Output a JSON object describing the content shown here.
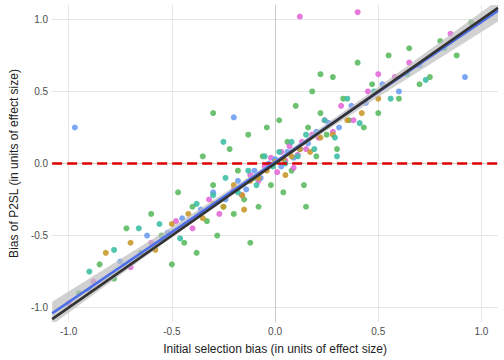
{
  "chart_data": {
    "type": "scatter",
    "x_label": "Initial selection bias (in units of effect size)",
    "y_label": "Bias of P2SL (in units of effect size)",
    "xlim": [
      -1.08,
      1.08
    ],
    "ylim": [
      -1.1,
      1.1
    ],
    "xticks": [
      {
        "value": -1,
        "label": "-1.0"
      },
      -0.5,
      {
        "value": 0,
        "label": "0.0"
      },
      0.5,
      {
        "value": 1,
        "label": "1.0"
      }
    ],
    "yticks": [
      {
        "value": -1,
        "label": "-1.0"
      },
      -0.5,
      {
        "value": 0,
        "label": "0.0"
      },
      0.5,
      {
        "value": 1,
        "label": "1.0"
      }
    ],
    "grid": true,
    "series": [
      {
        "type": "scatter",
        "color": "#5DBB63",
        "x": [
          -0.95,
          -0.85,
          -0.78,
          -0.72,
          -0.65,
          -0.6,
          -0.55,
          -0.5,
          -0.47,
          -0.44,
          -0.4,
          -0.38,
          -0.35,
          -0.33,
          -0.3,
          -0.28,
          -0.25,
          -0.22,
          -0.2,
          -0.18,
          -0.15,
          -0.13,
          -0.1,
          -0.08,
          -0.06,
          -0.04,
          -0.02,
          0,
          0.02,
          0.04,
          0.06,
          0.08,
          0.1,
          0.12,
          0.14,
          0.16,
          0.18,
          0.2,
          0.22,
          0.25,
          0.28,
          0.3,
          0.33,
          0.36,
          0.4,
          0.43,
          0.47,
          0.5,
          0.55,
          0.6,
          0.65,
          0.7,
          0.75,
          0.8,
          0.88,
          0.95,
          -0.3,
          0.15,
          -0.12,
          0.22
        ],
        "values": [
          -0.9,
          -0.7,
          -0.8,
          -0.45,
          -0.62,
          -0.35,
          -0.5,
          -0.7,
          -0.2,
          -0.55,
          -0.3,
          -0.62,
          0.05,
          -0.4,
          -0.15,
          -0.5,
          -0.3,
          0.1,
          -0.35,
          -0.05,
          -0.25,
          0.2,
          -0.1,
          -0.3,
          0.05,
          0.25,
          -0.15,
          0.02,
          0.3,
          -0.2,
          0.15,
          -0.05,
          0.4,
          0.1,
          -0.15,
          0.25,
          0.5,
          0.05,
          0.35,
          0.2,
          0.6,
          0.1,
          0.45,
          0.3,
          0.7,
          0.25,
          0.55,
          0.35,
          0.75,
          0.45,
          0.8,
          0.55,
          0.6,
          0.85,
          0.75,
          0.98,
          0.35,
          -0.3,
          -0.55,
          0.62
        ]
      },
      {
        "type": "scatter",
        "color": "#E36AD8",
        "x": [
          -1.0,
          -0.88,
          -0.7,
          -0.6,
          -0.48,
          -0.4,
          -0.32,
          -0.27,
          -0.2,
          -0.16,
          -0.12,
          -0.08,
          -0.05,
          -0.02,
          0.01,
          0.03,
          0.05,
          0.07,
          0.09,
          0.11,
          0.13,
          0.15,
          0.18,
          0.21,
          0.24,
          0.28,
          0.32,
          0.38,
          0.45,
          0.5,
          0.58,
          0.65,
          0.85,
          0.12,
          0.4
        ],
        "values": [
          -0.97,
          -0.82,
          -0.72,
          -0.55,
          -0.4,
          -0.45,
          -0.25,
          -0.35,
          -0.18,
          -0.22,
          -0.08,
          -0.12,
          -0.02,
          0.04,
          -0.06,
          0.08,
          0.02,
          0.12,
          -0.03,
          0.06,
          0.15,
          0.1,
          0.2,
          0.18,
          0.3,
          0.22,
          0.4,
          0.3,
          0.5,
          0.62,
          0.6,
          0.7,
          0.9,
          1.02,
          1.05
        ]
      },
      {
        "type": "scatter",
        "color": "#6E9EF2",
        "x": [
          -0.97,
          -0.9,
          -0.75,
          -0.62,
          -0.52,
          -0.45,
          -0.36,
          -0.3,
          -0.24,
          -0.18,
          -0.14,
          -0.1,
          -0.07,
          -0.03,
          0,
          0.03,
          0.06,
          0.09,
          0.12,
          0.16,
          0.2,
          0.26,
          0.31,
          0.37,
          0.44,
          0.52,
          0.6,
          0.7,
          0.92,
          -0.2
        ],
        "values": [
          0.25,
          -0.88,
          -0.68,
          -0.5,
          -0.48,
          -0.38,
          -0.32,
          -0.2,
          -0.25,
          -0.12,
          -0.18,
          -0.05,
          -0.1,
          0,
          0.03,
          -0.02,
          0.08,
          0.04,
          0.1,
          0.14,
          0.22,
          0.28,
          0.25,
          0.4,
          0.42,
          0.55,
          0.5,
          0.68,
          0.6,
          0.32
        ]
      },
      {
        "type": "scatter",
        "color": "#C99A2E",
        "x": [
          -0.82,
          -0.7,
          -0.58,
          -0.5,
          -0.42,
          -0.35,
          -0.3,
          -0.25,
          -0.2,
          -0.16,
          -0.12,
          -0.08,
          -0.04,
          0,
          0.04,
          0.08,
          0.12,
          0.17,
          0.22,
          0.28,
          0.35,
          0.42,
          0.5,
          -0.15,
          0.05
        ],
        "values": [
          -0.62,
          -0.55,
          -0.6,
          -0.42,
          -0.35,
          -0.38,
          -0.28,
          -0.3,
          -0.15,
          -0.22,
          -0.12,
          -0.1,
          -0.05,
          0.01,
          0.03,
          0.05,
          0.1,
          0.08,
          0.18,
          0.2,
          0.3,
          0.35,
          0.45,
          -0.32,
          -0.08
        ]
      },
      {
        "type": "scatter",
        "color": "#3FBFA6",
        "x": [
          -0.9,
          -0.78,
          -0.66,
          -0.56,
          -0.46,
          -0.38,
          -0.3,
          -0.24,
          -0.18,
          -0.13,
          -0.09,
          -0.05,
          -0.01,
          0.02,
          0.05,
          0.08,
          0.11,
          0.15,
          0.19,
          0.24,
          0.29,
          0.35,
          0.41,
          0.48,
          0.56,
          0.64,
          0.73,
          0.82,
          -0.25,
          0.3
        ],
        "values": [
          -0.75,
          -0.6,
          -0.45,
          -0.42,
          -0.52,
          -0.28,
          -0.22,
          -0.1,
          -0.2,
          -0.05,
          -0.15,
          0.05,
          -0.02,
          0.08,
          0.0,
          0.15,
          0.05,
          0.2,
          0.1,
          0.3,
          0.18,
          0.45,
          0.28,
          0.5,
          0.45,
          0.62,
          0.58,
          0.8,
          0.15,
          0.05
        ]
      },
      {
        "type": "band",
        "color": "#bdbdbd",
        "x": [
          -1.08,
          -0.5,
          0,
          0.5,
          1.08
        ],
        "lower": [
          -1.12,
          -0.511,
          -0.005,
          0.461,
          0.985
        ],
        "upper": [
          -0.96,
          -0.441,
          0.025,
          0.531,
          1.135
        ]
      },
      {
        "type": "line",
        "color": "#dd0000",
        "line_style": "dashed",
        "x": [
          -1.08,
          1.08
        ],
        "values": [
          0,
          0
        ]
      },
      {
        "type": "line",
        "color": "#4F6FE8",
        "line_style": "solid",
        "x": [
          -1.08,
          1.08
        ],
        "values": [
          -1.04,
          1.06
        ]
      },
      {
        "type": "line",
        "color": "#333333",
        "line_style": "solid",
        "x": [
          -1.08,
          1.08
        ],
        "values": [
          -1.08,
          1.08
        ]
      }
    ]
  }
}
